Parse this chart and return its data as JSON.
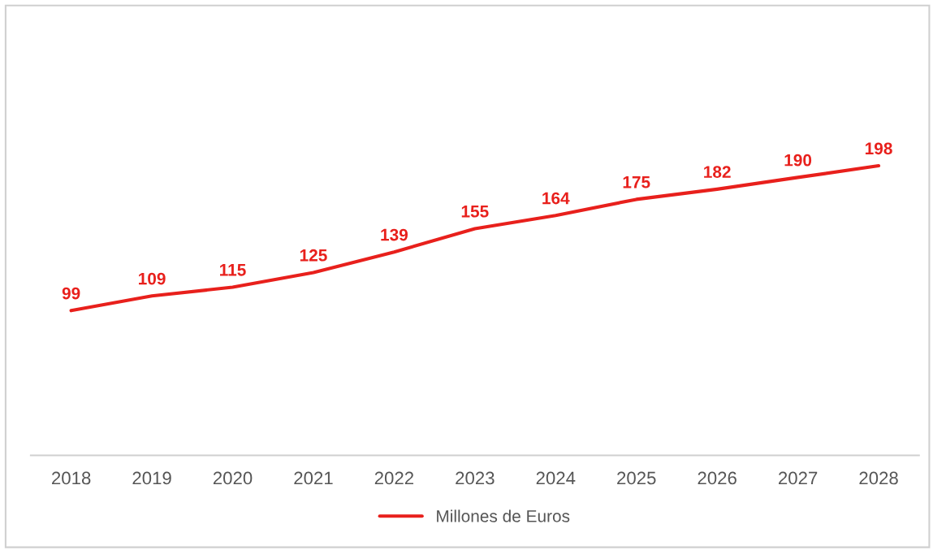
{
  "chart_data": {
    "type": "line",
    "categories": [
      "2018",
      "2019",
      "2020",
      "2021",
      "2022",
      "2023",
      "2024",
      "2025",
      "2026",
      "2027",
      "2028"
    ],
    "series": [
      {
        "name": "Millones de Euros",
        "color": "#e8201c",
        "values": [
          99,
          109,
          115,
          125,
          139,
          155,
          164,
          175,
          182,
          190,
          198
        ]
      }
    ],
    "data_labels": true,
    "legend": "bottom",
    "grid": false,
    "line_style": "solid",
    "tick_labels": "x"
  }
}
